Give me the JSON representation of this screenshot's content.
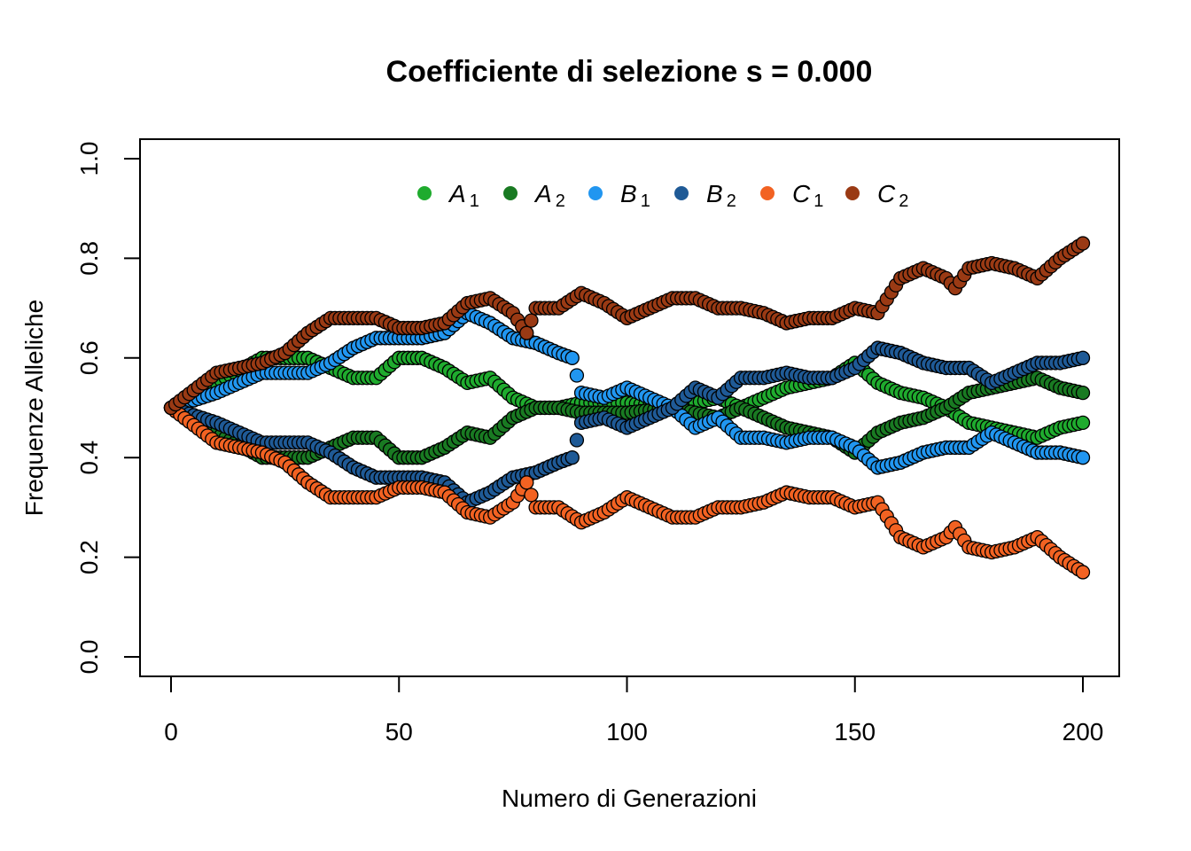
{
  "chart_data": {
    "type": "scatter",
    "title": "Coefficiente di selezione s = 0.000",
    "xlabel": "Numero di Generazioni",
    "ylabel": "Frequenze Alleliche",
    "xlim": [
      0,
      200
    ],
    "ylim": [
      0,
      1
    ],
    "x_ticks": [
      "0",
      "50",
      "100",
      "150",
      "200"
    ],
    "y_ticks": [
      "0.0",
      "0.2",
      "0.4",
      "0.6",
      "0.8",
      "1.0"
    ],
    "legend_position": "top-center",
    "series": [
      {
        "name": "A",
        "sub": "1",
        "color": "#1fab2e",
        "knots": [
          [
            0,
            0.5
          ],
          [
            10,
            0.55
          ],
          [
            20,
            0.6
          ],
          [
            30,
            0.6
          ],
          [
            40,
            0.56
          ],
          [
            45,
            0.56
          ],
          [
            50,
            0.6
          ],
          [
            55,
            0.6
          ],
          [
            60,
            0.58
          ],
          [
            65,
            0.55
          ],
          [
            70,
            0.56
          ],
          [
            75,
            0.52
          ],
          [
            80,
            0.5
          ],
          [
            85,
            0.5
          ],
          [
            90,
            0.51
          ],
          [
            95,
            0.51
          ],
          [
            100,
            0.51
          ],
          [
            110,
            0.5
          ],
          [
            120,
            0.52
          ],
          [
            125,
            0.5
          ],
          [
            130,
            0.52
          ],
          [
            135,
            0.54
          ],
          [
            140,
            0.55
          ],
          [
            145,
            0.56
          ],
          [
            150,
            0.59
          ],
          [
            155,
            0.55
          ],
          [
            160,
            0.53
          ],
          [
            165,
            0.52
          ],
          [
            170,
            0.5
          ],
          [
            175,
            0.47
          ],
          [
            180,
            0.46
          ],
          [
            185,
            0.45
          ],
          [
            190,
            0.44
          ],
          [
            195,
            0.46
          ],
          [
            200,
            0.47
          ]
        ]
      },
      {
        "name": "A",
        "sub": "2",
        "color": "#197a22",
        "knots": [
          [
            0,
            0.5
          ],
          [
            10,
            0.45
          ],
          [
            20,
            0.4
          ],
          [
            30,
            0.4
          ],
          [
            40,
            0.44
          ],
          [
            45,
            0.44
          ],
          [
            50,
            0.4
          ],
          [
            55,
            0.4
          ],
          [
            60,
            0.42
          ],
          [
            65,
            0.45
          ],
          [
            70,
            0.44
          ],
          [
            75,
            0.48
          ],
          [
            80,
            0.5
          ],
          [
            85,
            0.5
          ],
          [
            90,
            0.49
          ],
          [
            95,
            0.49
          ],
          [
            100,
            0.49
          ],
          [
            110,
            0.5
          ],
          [
            120,
            0.48
          ],
          [
            125,
            0.5
          ],
          [
            130,
            0.48
          ],
          [
            135,
            0.46
          ],
          [
            140,
            0.45
          ],
          [
            145,
            0.44
          ],
          [
            150,
            0.41
          ],
          [
            155,
            0.45
          ],
          [
            160,
            0.47
          ],
          [
            165,
            0.48
          ],
          [
            170,
            0.5
          ],
          [
            175,
            0.53
          ],
          [
            180,
            0.54
          ],
          [
            185,
            0.55
          ],
          [
            190,
            0.56
          ],
          [
            195,
            0.54
          ],
          [
            200,
            0.53
          ]
        ]
      },
      {
        "name": "B",
        "sub": "1",
        "color": "#2196f0",
        "knots": [
          [
            0,
            0.5
          ],
          [
            10,
            0.53
          ],
          [
            20,
            0.57
          ],
          [
            30,
            0.57
          ],
          [
            35,
            0.59
          ],
          [
            40,
            0.62
          ],
          [
            45,
            0.64
          ],
          [
            50,
            0.64
          ],
          [
            55,
            0.64
          ],
          [
            60,
            0.65
          ],
          [
            65,
            0.69
          ],
          [
            70,
            0.67
          ],
          [
            75,
            0.64
          ],
          [
            80,
            0.63
          ],
          [
            85,
            0.61
          ],
          [
            88,
            0.6
          ],
          [
            90,
            0.53
          ],
          [
            95,
            0.52
          ],
          [
            100,
            0.54
          ],
          [
            105,
            0.52
          ],
          [
            110,
            0.5
          ],
          [
            115,
            0.46
          ],
          [
            120,
            0.48
          ],
          [
            125,
            0.44
          ],
          [
            130,
            0.44
          ],
          [
            135,
            0.43
          ],
          [
            140,
            0.44
          ],
          [
            145,
            0.44
          ],
          [
            150,
            0.42
          ],
          [
            155,
            0.38
          ],
          [
            160,
            0.39
          ],
          [
            165,
            0.41
          ],
          [
            170,
            0.42
          ],
          [
            175,
            0.42
          ],
          [
            180,
            0.45
          ],
          [
            185,
            0.43
          ],
          [
            190,
            0.41
          ],
          [
            195,
            0.41
          ],
          [
            200,
            0.4
          ]
        ]
      },
      {
        "name": "B",
        "sub": "2",
        "color": "#1f5a96",
        "knots": [
          [
            0,
            0.5
          ],
          [
            10,
            0.47
          ],
          [
            20,
            0.43
          ],
          [
            30,
            0.43
          ],
          [
            35,
            0.41
          ],
          [
            40,
            0.38
          ],
          [
            45,
            0.36
          ],
          [
            50,
            0.36
          ],
          [
            55,
            0.36
          ],
          [
            60,
            0.35
          ],
          [
            65,
            0.31
          ],
          [
            70,
            0.33
          ],
          [
            75,
            0.36
          ],
          [
            80,
            0.37
          ],
          [
            85,
            0.39
          ],
          [
            88,
            0.4
          ],
          [
            90,
            0.47
          ],
          [
            95,
            0.48
          ],
          [
            100,
            0.46
          ],
          [
            105,
            0.48
          ],
          [
            110,
            0.5
          ],
          [
            115,
            0.54
          ],
          [
            120,
            0.52
          ],
          [
            125,
            0.56
          ],
          [
            130,
            0.56
          ],
          [
            135,
            0.57
          ],
          [
            140,
            0.56
          ],
          [
            145,
            0.56
          ],
          [
            150,
            0.58
          ],
          [
            155,
            0.62
          ],
          [
            160,
            0.61
          ],
          [
            165,
            0.59
          ],
          [
            170,
            0.58
          ],
          [
            175,
            0.58
          ],
          [
            180,
            0.55
          ],
          [
            185,
            0.57
          ],
          [
            190,
            0.59
          ],
          [
            195,
            0.59
          ],
          [
            200,
            0.6
          ]
        ]
      },
      {
        "name": "C",
        "sub": "1",
        "color": "#f26222",
        "knots": [
          [
            0,
            0.5
          ],
          [
            10,
            0.43
          ],
          [
            20,
            0.41
          ],
          [
            25,
            0.39
          ],
          [
            30,
            0.35
          ],
          [
            35,
            0.32
          ],
          [
            40,
            0.32
          ],
          [
            45,
            0.32
          ],
          [
            50,
            0.34
          ],
          [
            55,
            0.34
          ],
          [
            60,
            0.33
          ],
          [
            65,
            0.29
          ],
          [
            70,
            0.28
          ],
          [
            75,
            0.31
          ],
          [
            78,
            0.35
          ],
          [
            80,
            0.3
          ],
          [
            85,
            0.3
          ],
          [
            90,
            0.27
          ],
          [
            95,
            0.29
          ],
          [
            100,
            0.32
          ],
          [
            105,
            0.3
          ],
          [
            110,
            0.28
          ],
          [
            115,
            0.28
          ],
          [
            120,
            0.3
          ],
          [
            125,
            0.3
          ],
          [
            130,
            0.31
          ],
          [
            135,
            0.33
          ],
          [
            140,
            0.32
          ],
          [
            145,
            0.32
          ],
          [
            150,
            0.3
          ],
          [
            155,
            0.31
          ],
          [
            160,
            0.24
          ],
          [
            165,
            0.22
          ],
          [
            170,
            0.24
          ],
          [
            172,
            0.26
          ],
          [
            175,
            0.22
          ],
          [
            180,
            0.21
          ],
          [
            185,
            0.22
          ],
          [
            190,
            0.24
          ],
          [
            195,
            0.2
          ],
          [
            200,
            0.17
          ]
        ]
      },
      {
        "name": "C",
        "sub": "2",
        "color": "#9a3a14",
        "knots": [
          [
            0,
            0.5
          ],
          [
            10,
            0.57
          ],
          [
            20,
            0.59
          ],
          [
            25,
            0.61
          ],
          [
            30,
            0.65
          ],
          [
            35,
            0.68
          ],
          [
            40,
            0.68
          ],
          [
            45,
            0.68
          ],
          [
            50,
            0.66
          ],
          [
            55,
            0.66
          ],
          [
            60,
            0.67
          ],
          [
            65,
            0.71
          ],
          [
            70,
            0.72
          ],
          [
            75,
            0.69
          ],
          [
            78,
            0.65
          ],
          [
            80,
            0.7
          ],
          [
            85,
            0.7
          ],
          [
            90,
            0.73
          ],
          [
            95,
            0.71
          ],
          [
            100,
            0.68
          ],
          [
            105,
            0.7
          ],
          [
            110,
            0.72
          ],
          [
            115,
            0.72
          ],
          [
            120,
            0.7
          ],
          [
            125,
            0.7
          ],
          [
            130,
            0.69
          ],
          [
            135,
            0.67
          ],
          [
            140,
            0.68
          ],
          [
            145,
            0.68
          ],
          [
            150,
            0.7
          ],
          [
            155,
            0.69
          ],
          [
            160,
            0.76
          ],
          [
            165,
            0.78
          ],
          [
            170,
            0.76
          ],
          [
            172,
            0.74
          ],
          [
            175,
            0.78
          ],
          [
            180,
            0.79
          ],
          [
            185,
            0.78
          ],
          [
            190,
            0.76
          ],
          [
            195,
            0.8
          ],
          [
            200,
            0.83
          ]
        ]
      }
    ]
  }
}
